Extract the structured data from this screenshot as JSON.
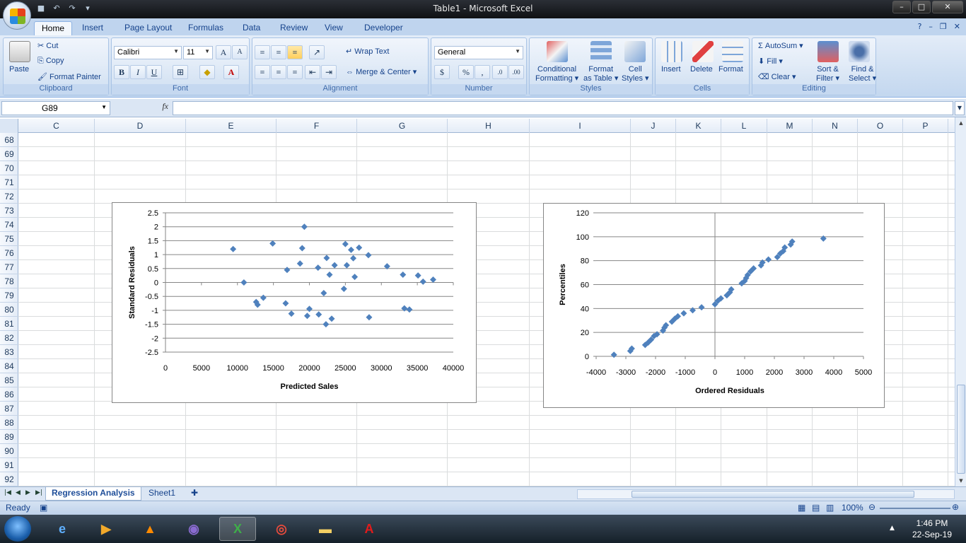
{
  "window": {
    "title": "Table1 - Microsoft Excel",
    "min": "–",
    "max": "□",
    "close": "✕"
  },
  "ribbon_tabs": [
    "Home",
    "Insert",
    "Page Layout",
    "Formulas",
    "Data",
    "Review",
    "View",
    "Developer"
  ],
  "ribbon": {
    "clipboard": {
      "label": "Clipboard",
      "paste": "Paste",
      "cut": "Cut",
      "copy": "Copy",
      "format_painter": "Format Painter"
    },
    "font": {
      "label": "Font",
      "name": "Calibri",
      "size": "11",
      "bold": "B",
      "italic": "I",
      "underline": "U"
    },
    "alignment": {
      "label": "Alignment",
      "wrap_text": "Wrap Text",
      "merge_center": "Merge & Center"
    },
    "number": {
      "label": "Number",
      "format": "General",
      "currency": "$",
      "percent": "%",
      "comma": ","
    },
    "styles": {
      "label": "Styles",
      "conditional": "Conditional",
      "formatting": "Formatting",
      "format": "Format",
      "as_table": "as Table",
      "cell": "Cell",
      "styles": "Styles"
    },
    "cells": {
      "label": "Cells",
      "insert": "Insert",
      "delete": "Delete",
      "format": "Format"
    },
    "editing": {
      "label": "Editing",
      "autosum": "AutoSum",
      "fill": "Fill",
      "clear": "Clear",
      "sort": "Sort &",
      "filter": "Filter",
      "find": "Find &",
      "select": "Select"
    }
  },
  "formula_bar": {
    "name_box": "G89",
    "fx": "fx",
    "value": ""
  },
  "columns": [
    "C",
    "D",
    "E",
    "F",
    "G",
    "H",
    "I",
    "J",
    "K",
    "L",
    "M",
    "N",
    "O",
    "P"
  ],
  "rows": [
    "68",
    "69",
    "70",
    "71",
    "72",
    "73",
    "74",
    "75",
    "76",
    "77",
    "78",
    "79",
    "80",
    "81",
    "82",
    "83",
    "84",
    "85",
    "86",
    "87",
    "88",
    "89",
    "90",
    "91",
    "92"
  ],
  "sheet_tabs": [
    "Regression Analysis",
    "Sheet1"
  ],
  "status": {
    "ready": "Ready",
    "zoom": "100%"
  },
  "taskbar": {
    "time": "1:46 PM",
    "date": "22-Sep-19"
  },
  "chart_data": [
    {
      "type": "scatter",
      "title": "",
      "xlabel": "Predicted Sales",
      "ylabel": "Standard Residuals",
      "xlim": [
        0,
        40000
      ],
      "ylim": [
        -2.5,
        2.5
      ],
      "xticks": [
        0,
        5000,
        10000,
        15000,
        20000,
        25000,
        30000,
        35000,
        40000
      ],
      "yticks": [
        -2.5,
        -2,
        -1.5,
        -1,
        -0.5,
        0,
        0.5,
        1,
        1.5,
        2,
        2.5
      ],
      "grid": "horizontal",
      "color": "#4f81bd",
      "x": [
        9400,
        10900,
        12600,
        12800,
        13600,
        14900,
        16700,
        16900,
        17500,
        18700,
        19000,
        19300,
        19700,
        20000,
        21200,
        21300,
        22000,
        22300,
        22400,
        22800,
        23100,
        23500,
        24800,
        25000,
        25200,
        25800,
        26100,
        26300,
        26900,
        28200,
        28300,
        30800,
        33000,
        33200,
        33900,
        35100,
        35800,
        37200
      ],
      "y": [
        1.2,
        0.0,
        -0.7,
        -0.8,
        -0.55,
        1.4,
        -0.75,
        0.45,
        -1.12,
        0.68,
        1.23,
        2.0,
        -1.2,
        -0.95,
        0.53,
        -1.15,
        -0.38,
        -1.5,
        0.88,
        0.28,
        -1.3,
        0.62,
        -0.23,
        1.38,
        0.62,
        1.17,
        0.87,
        0.2,
        1.25,
        0.98,
        -1.25,
        0.58,
        0.28,
        -0.93,
        -0.97,
        0.25,
        0.03,
        0.1
      ]
    },
    {
      "type": "scatter",
      "title": "",
      "xlabel": "Ordered Residuals",
      "ylabel": "Percentiles",
      "xlim": [
        -4000,
        5000
      ],
      "ylim": [
        0,
        120
      ],
      "xticks": [
        -4000,
        -3000,
        -2000,
        -1000,
        0,
        1000,
        2000,
        3000,
        4000,
        5000
      ],
      "yticks": [
        0,
        20,
        40,
        60,
        80,
        100,
        120
      ],
      "grid": "horizontal",
      "color": "#4f81bd",
      "x": [
        -3400,
        -2850,
        -2800,
        -2350,
        -2250,
        -2150,
        -2050,
        -1950,
        -1750,
        -1700,
        -1650,
        -1450,
        -1350,
        -1250,
        -1050,
        -750,
        -450,
        0,
        100,
        200,
        400,
        500,
        550,
        900,
        1000,
        1050,
        1100,
        1200,
        1300,
        1550,
        1600,
        1800,
        2100,
        2200,
        2300,
        2350,
        2550,
        2600,
        3650
      ],
      "y": [
        1.3,
        4.5,
        6.5,
        9.5,
        11.5,
        14,
        17,
        18.5,
        21.5,
        24,
        26,
        29,
        31.5,
        33.5,
        36,
        38.5,
        41,
        43.5,
        46.5,
        48.5,
        51,
        53.5,
        56,
        61,
        63,
        65.5,
        68,
        71,
        73.5,
        76,
        78.5,
        81,
        83,
        86,
        88,
        91,
        93.5,
        96,
        98.5
      ]
    }
  ]
}
